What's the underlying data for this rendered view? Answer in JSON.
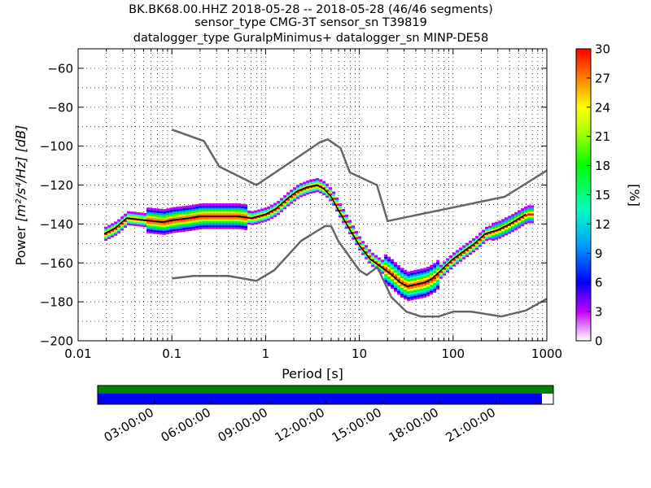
{
  "chart_data": {
    "type": "heatmap",
    "title_lines": [
      "BK.BK68.00.HHZ   2018-05-28 -- 2018-05-28  (46/46 segments)",
      "sensor_type CMG-3T sensor_sn T39819",
      "datalogger_type GuralpMinimus+ datalogger_sn MINP-DE58"
    ],
    "xlabel": "Period [s]",
    "ylabel_prefix": "Power",
    "ylabel_units": "[m²/s⁴/Hz] [dB]",
    "x_scale": "log",
    "xlim": [
      0.01,
      1000
    ],
    "ylim": [
      -200,
      -50
    ],
    "x_ticks": [
      0.01,
      0.1,
      1,
      10,
      100,
      1000
    ],
    "x_tick_labels": [
      "0.01",
      "0.1",
      "1",
      "10",
      "100",
      "1000"
    ],
    "y_ticks": [
      -200,
      -180,
      -160,
      -140,
      -120,
      -100,
      -80,
      -60
    ],
    "y_tick_labels": [
      "−200",
      "−180",
      "−160",
      "−140",
      "−120",
      "−100",
      "−80",
      "−60"
    ],
    "grid": true,
    "colorbar": {
      "label": "[%]",
      "range": [
        0,
        30
      ],
      "ticks": [
        0,
        3,
        6,
        9,
        12,
        15,
        18,
        21,
        24,
        27,
        30
      ],
      "tick_labels": [
        "0",
        "3",
        "6",
        "9",
        "12",
        "15",
        "18",
        "21",
        "24",
        "27",
        "30"
      ]
    },
    "nhnm": {
      "x": [
        0.1,
        0.22,
        0.32,
        0.8,
        3.8,
        4.6,
        6.3,
        7.9,
        15.4,
        20,
        354.8,
        1000
      ],
      "y": [
        -91.5,
        -97.4,
        -110.5,
        -120,
        -98,
        -96.5,
        -101,
        -113.5,
        -120,
        -138.5,
        -126,
        -112.5
      ]
    },
    "nlnm": {
      "x": [
        0.1,
        0.17,
        0.4,
        0.8,
        1.24,
        2.4,
        4.3,
        5,
        6,
        10,
        12,
        15.6,
        21.9,
        31.6,
        45,
        70,
        101,
        154,
        328,
        600,
        1000
      ],
      "y": [
        -168,
        -166.7,
        -166.7,
        -169.2,
        -163.7,
        -148.6,
        -141.1,
        -141.1,
        -149,
        -163.8,
        -166.2,
        -162.1,
        -177.5,
        -185,
        -187.5,
        -187.5,
        -185,
        -185,
        -187.5,
        -184.4,
        -178.4
      ]
    },
    "mode_curve": {
      "x": [
        0.019,
        0.025,
        0.033,
        0.05,
        0.08,
        0.1,
        0.15,
        0.2,
        0.3,
        0.5,
        0.7,
        1,
        1.3,
        1.7,
        2.2,
        2.8,
        3.5,
        4.2,
        5,
        6,
        7.5,
        10,
        13,
        17,
        22,
        27,
        32,
        40,
        50,
        60,
        70,
        85,
        100,
        130,
        170,
        220,
        300,
        400,
        600
      ],
      "y": [
        -145,
        -142,
        -137,
        -138,
        -139,
        -138,
        -137,
        -136,
        -136,
        -136,
        -137,
        -135,
        -132,
        -127,
        -123,
        -121,
        -120,
        -122,
        -126,
        -133,
        -141,
        -151,
        -158,
        -162,
        -166,
        -170,
        -172,
        -171,
        -170,
        -168,
        -165,
        -161,
        -158,
        -154,
        -150,
        -145,
        -143,
        -140,
        -135
      ]
    },
    "time_axis": {
      "tick_labels": [
        "03:00:00",
        "06:00:00",
        "09:00:00",
        "12:00:00",
        "15:00:00",
        "18:00:00",
        "21:00:00"
      ],
      "tick_hours": [
        3,
        6,
        9,
        12,
        15,
        18,
        21
      ],
      "range_hours": [
        0,
        24
      ],
      "data_coverage_hours": [
        0,
        24
      ],
      "psd_coverage_hours": [
        0,
        23.4
      ],
      "data_color": "#008000",
      "psd_color": "#0000ff"
    }
  }
}
